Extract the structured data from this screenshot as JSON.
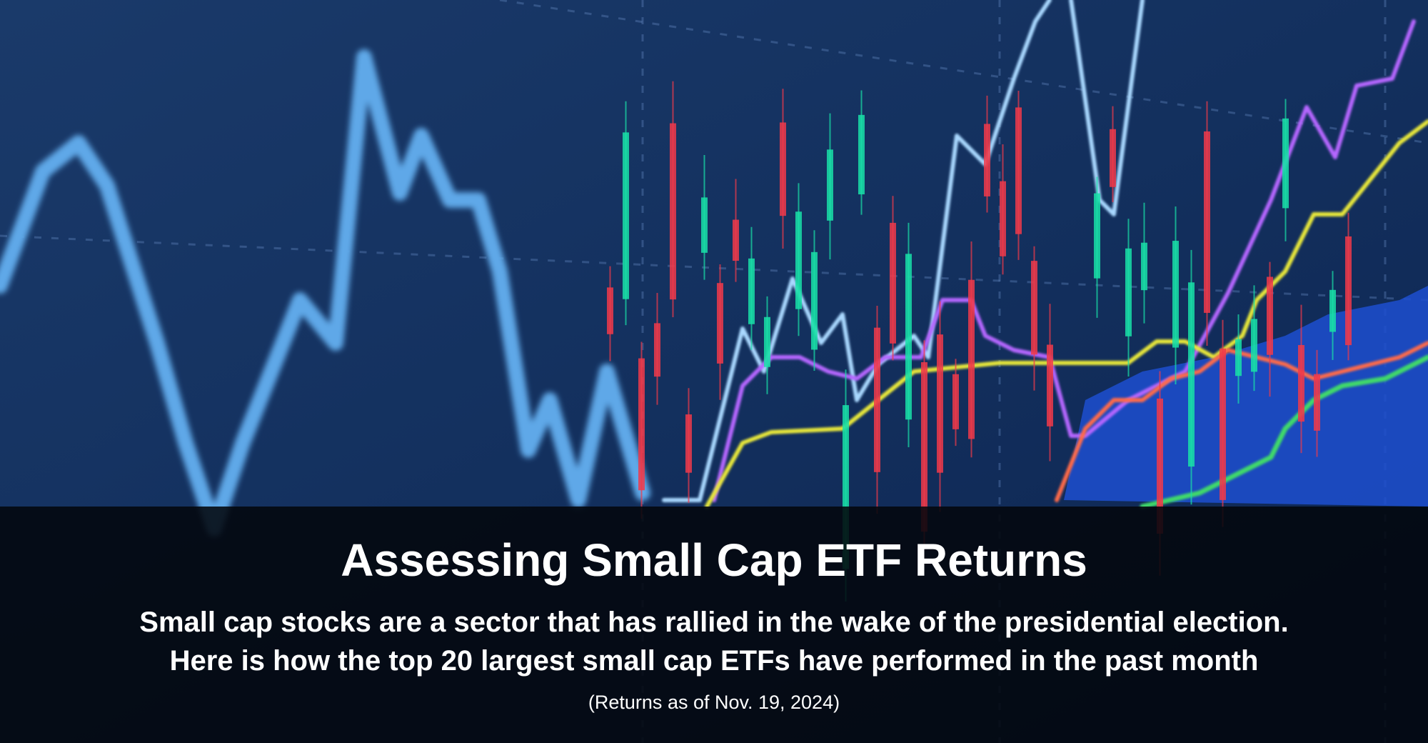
{
  "header": {
    "title": "Assessing Small Cap ETF Returns",
    "subtitle_lines": [
      "Small cap stocks are a sector that has rallied in the wake of the presidential election.",
      "Here is how the top 20 largest small cap ETFs have performed in the past month"
    ],
    "note": "(Returns as of Nov. 19, 2024)"
  }
}
